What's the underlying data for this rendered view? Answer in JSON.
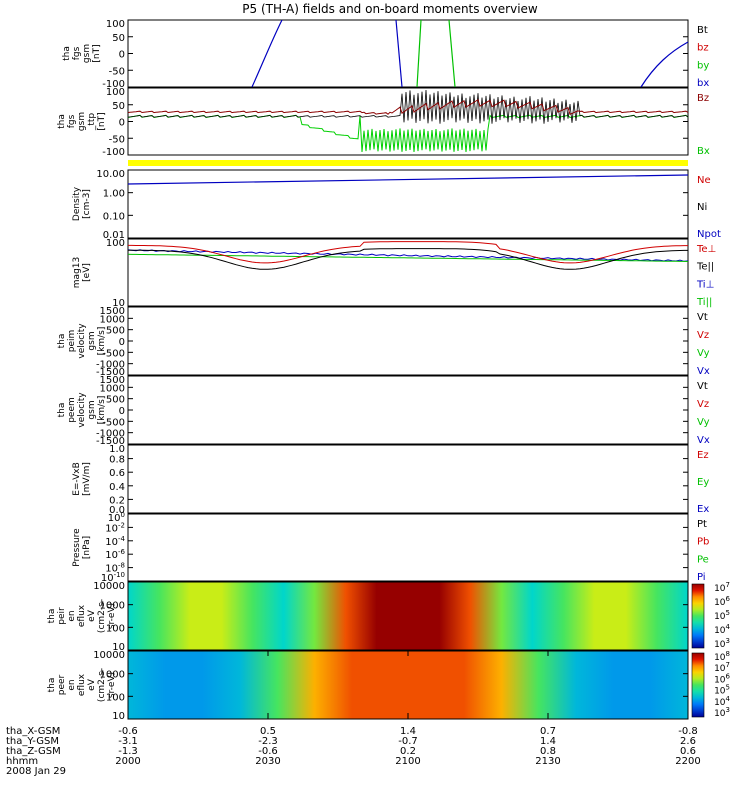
{
  "title": "P5 (TH-A) fields and on-board moments overview",
  "date_label": "2008 Jan 29",
  "chart_data": [
    {
      "type": "line",
      "ylabel_lines": [
        "tha",
        "fgs",
        "gsm",
        "[nT]"
      ],
      "ylim": [
        -100,
        100
      ],
      "yticks": [
        "100",
        "50",
        "0",
        "-50",
        "-100"
      ],
      "legend": [
        {
          "label": "Bt",
          "color": "#000000"
        },
        {
          "label": "bz",
          "color": "#d00000"
        },
        {
          "label": "by",
          "color": "#00c000"
        },
        {
          "label": "bx",
          "color": "#0000c0"
        }
      ]
    },
    {
      "type": "line",
      "ylabel_lines": [
        "tha",
        "fgs",
        "gsm",
        "_ttp",
        "[nT]"
      ],
      "ylim": [
        -125,
        100
      ],
      "yticks": [
        "100",
        "50",
        "0",
        "-50",
        "-100"
      ],
      "legend": [
        {
          "label": "Bz",
          "color": "#8b0000"
        },
        {
          "label": "Bx",
          "color": "#00c000"
        }
      ]
    },
    {
      "type": "line",
      "ylabel_lines": [
        "Density",
        "[cm-3]"
      ],
      "scale": "log",
      "yticks": [
        "10.00",
        "1.00",
        "0.10",
        "0.01"
      ],
      "legend": [
        {
          "label": "Ne",
          "color": "#d00000"
        },
        {
          "label": "Ni",
          "color": "#000000"
        },
        {
          "label": "Npot",
          "color": "#0000c0"
        }
      ]
    },
    {
      "type": "line",
      "ylabel_lines": [
        "mag13",
        "[eV]"
      ],
      "scale": "log",
      "yticks": [
        "100",
        "10"
      ],
      "legend": [
        {
          "label": "Te⊥",
          "color": "#d00000"
        },
        {
          "label": "Te||",
          "color": "#000000"
        },
        {
          "label": "Ti⊥",
          "color": "#0000c0"
        },
        {
          "label": "Ti||",
          "color": "#00c000"
        }
      ]
    },
    {
      "type": "line",
      "ylabel_lines": [
        "tha",
        "peim",
        "velocity",
        "gsm",
        "[km/s]"
      ],
      "ylim": [
        -1500,
        1500
      ],
      "yticks": [
        "1500",
        "1000",
        "500",
        "0",
        "-500",
        "-1000",
        "-1500"
      ],
      "legend": [
        {
          "label": "Vt",
          "color": "#000000"
        },
        {
          "label": "Vz",
          "color": "#d00000"
        },
        {
          "label": "Vy",
          "color": "#00c000"
        },
        {
          "label": "Vx",
          "color": "#0000c0"
        }
      ]
    },
    {
      "type": "line",
      "ylabel_lines": [
        "tha",
        "peem",
        "velocity",
        "gsm",
        "[km/s]"
      ],
      "ylim": [
        -1500,
        1500
      ],
      "yticks": [
        "1500",
        "1000",
        "500",
        "0",
        "-500",
        "-1000",
        "-1500"
      ],
      "legend": [
        {
          "label": "Vt",
          "color": "#000000"
        },
        {
          "label": "Vz",
          "color": "#d00000"
        },
        {
          "label": "Vy",
          "color": "#00c000"
        },
        {
          "label": "Vx",
          "color": "#0000c0"
        }
      ]
    },
    {
      "type": "line",
      "ylabel_lines": [
        "E=-VxB",
        "[mV/m]"
      ],
      "ylim": [
        0,
        1
      ],
      "yticks": [
        "1.0",
        "0.8",
        "0.6",
        "0.4",
        "0.2",
        "0.0"
      ],
      "legend": [
        {
          "label": "Ez",
          "color": "#d00000"
        },
        {
          "label": "Ey",
          "color": "#00c000"
        },
        {
          "label": "Ex",
          "color": "#0000c0"
        }
      ]
    },
    {
      "type": "line",
      "ylabel_lines": [
        "Pressure",
        "[nPa]"
      ],
      "scale": "log",
      "yticks": [
        "10^0",
        "10^-2",
        "10^-4",
        "10^-6",
        "10^-8",
        "10^-10"
      ],
      "legend": [
        {
          "label": "Pt",
          "color": "#000000"
        },
        {
          "label": "Pb",
          "color": "#d00000"
        },
        {
          "label": "Pe",
          "color": "#00c000"
        },
        {
          "label": "Pi",
          "color": "#0000c0"
        }
      ]
    },
    {
      "type": "heatmap",
      "ylabel_lines": [
        "tha",
        "peir",
        "en",
        "eflux",
        "eV",
        "(cm2-s-",
        "sr-eV)"
      ],
      "scale": "log",
      "yticks": [
        "10000",
        "1000",
        "100",
        "10"
      ],
      "colorbar_ticks": [
        "10^7",
        "10^6",
        "10^5",
        "10^4",
        "10^3"
      ],
      "profile": [
        0.35,
        0.5,
        0.62,
        0.62,
        0.5,
        0.35,
        0.55,
        0.85,
        1.0,
        1.0,
        1.0,
        0.85,
        0.55,
        0.35,
        0.5,
        0.62,
        0.62,
        0.5,
        0.35
      ]
    },
    {
      "type": "heatmap",
      "ylabel_lines": [
        "tha",
        "peer",
        "en",
        "eflux",
        "eV",
        "(cm2-s-",
        "sr-eV)"
      ],
      "scale": "log",
      "yticks": [
        "10000",
        "1000",
        "100",
        "10"
      ],
      "colorbar_ticks": [
        "10^8",
        "10^7",
        "10^6",
        "10^5",
        "10^4",
        "10^3"
      ],
      "profile": [
        0.3,
        0.25,
        0.25,
        0.3,
        0.5,
        0.75,
        0.85,
        0.85,
        0.85,
        0.85,
        0.75,
        0.5,
        0.3,
        0.25,
        0.25,
        0.3
      ]
    }
  ],
  "xaxis": {
    "rows": [
      {
        "label": "tha_X-GSM",
        "values": [
          "-0.6",
          "0.5",
          "1.4",
          "0.7",
          "-0.8"
        ]
      },
      {
        "label": "tha_Y-GSM",
        "values": [
          "-3.1",
          "-2.3",
          "-0.7",
          "1.4",
          "2.6"
        ]
      },
      {
        "label": "tha_Z-GSM",
        "values": [
          "-1.3",
          "-0.6",
          "0.2",
          "0.8",
          "0.6"
        ]
      },
      {
        "label": "hhmm",
        "values": [
          "2000",
          "2030",
          "2100",
          "2130",
          "2200"
        ]
      }
    ]
  }
}
